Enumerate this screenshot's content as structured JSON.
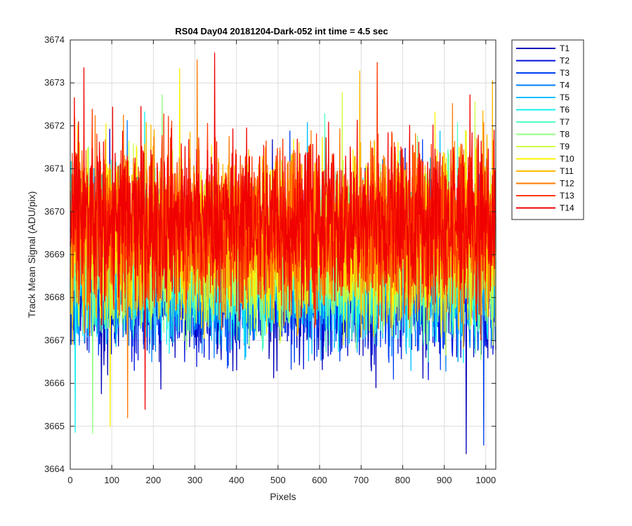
{
  "chart_data": {
    "type": "line",
    "title": "RS04 Day04 20181204-Dark-052 int time = 4.5 sec",
    "xlabel": "Pixels",
    "ylabel": "Track Mean Signal (ADU/pix)",
    "xlim": [
      0,
      1024
    ],
    "ylim": [
      3664,
      3674
    ],
    "xticks": [
      0,
      100,
      200,
      300,
      400,
      500,
      600,
      700,
      800,
      900,
      1000
    ],
    "yticks": [
      3664,
      3665,
      3666,
      3667,
      3668,
      3669,
      3670,
      3671,
      3672,
      3673,
      3674
    ],
    "grid": true,
    "legend_position": "outside-top-right",
    "n_points_per_series": 1024,
    "series": [
      {
        "name": "T1",
        "color": "#0000B8",
        "mean": 3668.3,
        "spread": 0.85
      },
      {
        "name": "T2",
        "color": "#0010DC",
        "mean": 3668.4,
        "spread": 0.85
      },
      {
        "name": "T3",
        "color": "#0040F4",
        "mean": 3668.5,
        "spread": 0.85
      },
      {
        "name": "T4",
        "color": "#0080FF",
        "mean": 3668.6,
        "spread": 0.85
      },
      {
        "name": "T5",
        "color": "#00BFFF",
        "mean": 3668.7,
        "spread": 0.85
      },
      {
        "name": "T6",
        "color": "#10F0F0",
        "mean": 3668.8,
        "spread": 0.85
      },
      {
        "name": "T7",
        "color": "#50FFC0",
        "mean": 3668.9,
        "spread": 0.85
      },
      {
        "name": "T8",
        "color": "#90FF80",
        "mean": 3669.0,
        "spread": 0.9
      },
      {
        "name": "T9",
        "color": "#D0FF40",
        "mean": 3669.2,
        "spread": 0.9
      },
      {
        "name": "T10",
        "color": "#FFF000",
        "mean": 3669.4,
        "spread": 0.95
      },
      {
        "name": "T11",
        "color": "#FFB800",
        "mean": 3669.5,
        "spread": 0.95
      },
      {
        "name": "T12",
        "color": "#FF7800",
        "mean": 3669.6,
        "spread": 0.95
      },
      {
        "name": "T13",
        "color": "#FF3800",
        "mean": 3669.7,
        "spread": 0.95
      },
      {
        "name": "T14",
        "color": "#F00000",
        "mean": 3669.8,
        "spread": 0.95
      }
    ]
  }
}
